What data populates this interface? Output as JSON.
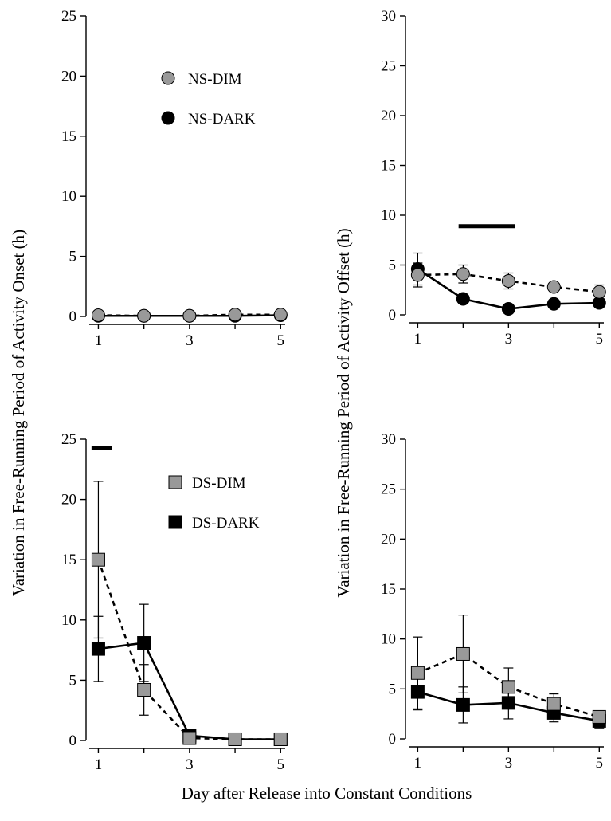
{
  "y_axis_label_left": "Variation in Free-Running Period of Activity Onset (h)",
  "y_axis_label_right": "Variation in Free-Running Period  of Activity Offset (h)",
  "x_axis_label": "Day after Release into Constant Conditions",
  "colors": {
    "gray": "#999999",
    "black": "#000000"
  },
  "chart_data": [
    {
      "id": "top-left",
      "type": "line",
      "x": [
        1,
        2,
        3,
        4,
        5
      ],
      "xticks": [
        "1",
        "3",
        "5"
      ],
      "xtick_values": [
        1,
        3,
        5
      ],
      "ylim": [
        0,
        25
      ],
      "yticks": [
        0,
        5,
        10,
        15,
        20,
        25
      ],
      "significance_bar": null,
      "legend": {
        "position": "top-center",
        "entries": [
          "NS-DIM",
          "NS-DARK"
        ]
      },
      "series": [
        {
          "name": "NS-DIM",
          "marker": "circle",
          "color": "#999999",
          "line": "dashed",
          "values": [
            0.1,
            0.05,
            0.05,
            0.15,
            0.15
          ],
          "errors": [
            0,
            0,
            0,
            0,
            0
          ]
        },
        {
          "name": "NS-DARK",
          "marker": "circle",
          "color": "#000000",
          "line": "solid",
          "values": [
            0.05,
            0.05,
            0.05,
            0.05,
            0.1
          ],
          "errors": [
            0,
            0,
            0,
            0,
            0
          ]
        }
      ]
    },
    {
      "id": "top-right",
      "type": "line",
      "x": [
        1,
        2,
        3,
        4,
        5
      ],
      "xticks": [
        "1",
        "3",
        "5"
      ],
      "xtick_values": [
        1,
        3,
        5
      ],
      "ylim": [
        0,
        30
      ],
      "yticks": [
        0,
        5,
        10,
        15,
        20,
        25,
        30
      ],
      "significance_bar": {
        "x_start": 1.9,
        "x_end": 3.15,
        "y": 8.9
      },
      "legend": null,
      "series": [
        {
          "name": "NS-DIM",
          "marker": "circle",
          "color": "#999999",
          "line": "dashed",
          "values": [
            4.0,
            4.1,
            3.4,
            2.8,
            2.3
          ],
          "errors": [
            1.2,
            0.9,
            0.8,
            0.4,
            0.7
          ]
        },
        {
          "name": "NS-DARK",
          "marker": "circle",
          "color": "#000000",
          "line": "solid",
          "values": [
            4.6,
            1.6,
            0.6,
            1.1,
            1.2
          ],
          "errors": [
            1.6,
            0.3,
            0.2,
            0.2,
            0.2
          ]
        }
      ]
    },
    {
      "id": "bottom-left",
      "type": "line",
      "x": [
        1,
        2,
        3,
        4,
        5
      ],
      "xticks": [
        "1",
        "3",
        "5"
      ],
      "xtick_values": [
        1,
        3,
        5
      ],
      "ylim": [
        0,
        25
      ],
      "yticks": [
        0,
        5,
        10,
        15,
        20,
        25
      ],
      "significance_bar": {
        "x_start": 0.85,
        "x_end": 1.3,
        "y": 24.3
      },
      "legend": {
        "position": "top-center",
        "entries": [
          "DS-DIM",
          "DS-DARK"
        ]
      },
      "series": [
        {
          "name": "DS-DIM",
          "marker": "square",
          "color": "#999999",
          "line": "dashed",
          "values": [
            15.0,
            4.2,
            0.2,
            0.1,
            0.1
          ],
          "errors": [
            6.5,
            2.1,
            0.2,
            0,
            0
          ]
        },
        {
          "name": "DS-DARK",
          "marker": "square",
          "color": "#000000",
          "line": "solid",
          "values": [
            7.6,
            8.1,
            0.4,
            0.1,
            0.1
          ],
          "errors": [
            2.7,
            3.2,
            0.2,
            0,
            0
          ]
        }
      ]
    },
    {
      "id": "bottom-right",
      "type": "line",
      "x": [
        1,
        2,
        3,
        4,
        5
      ],
      "xticks": [
        "1",
        "3",
        "5"
      ],
      "xtick_values": [
        1,
        3,
        5
      ],
      "ylim": [
        0,
        30
      ],
      "yticks": [
        0,
        5,
        10,
        15,
        20,
        25,
        30
      ],
      "significance_bar": null,
      "legend": null,
      "series": [
        {
          "name": "DS-DIM",
          "marker": "square",
          "color": "#999999",
          "line": "dashed",
          "values": [
            6.6,
            8.5,
            5.2,
            3.5,
            2.2
          ],
          "errors": [
            3.6,
            3.9,
            1.9,
            1.0,
            0.6
          ]
        },
        {
          "name": "DS-DARK",
          "marker": "square",
          "color": "#000000",
          "line": "solid",
          "values": [
            4.7,
            3.4,
            3.6,
            2.6,
            1.8
          ],
          "errors": [
            1.8,
            1.8,
            1.6,
            0.9,
            0.7
          ]
        }
      ]
    }
  ]
}
